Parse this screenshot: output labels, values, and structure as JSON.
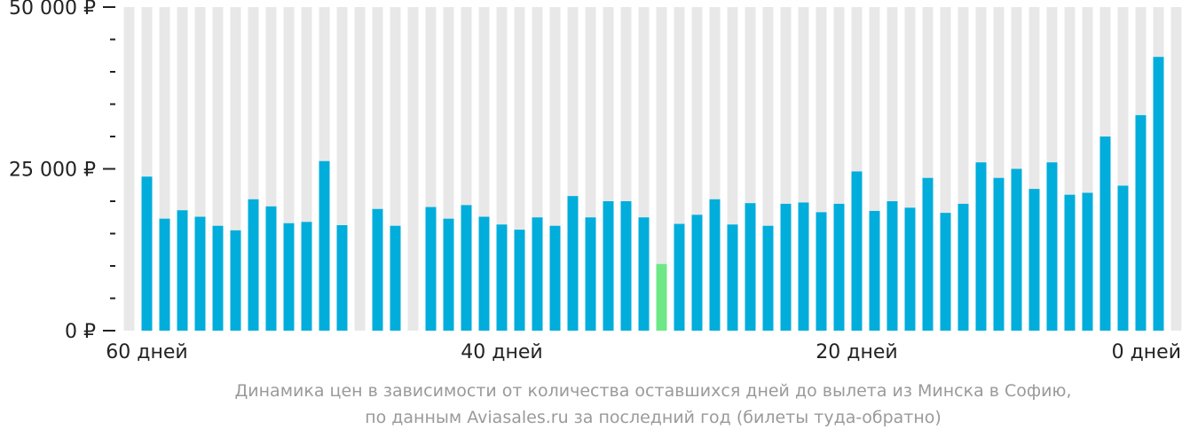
{
  "chart_data": {
    "type": "bar",
    "y_tick_labels": [
      "50 000 ₽",
      "25 000 ₽",
      "0 ₽"
    ],
    "y_tick_values": [
      50000,
      25000,
      0
    ],
    "ylim": [
      0,
      50000
    ],
    "x_tick_labels": [
      "60 дней",
      "40 дней",
      "20 дней",
      "0 дней"
    ],
    "x_tick_days": [
      60,
      40,
      20,
      0
    ],
    "days": [
      61,
      60,
      59,
      58,
      57,
      56,
      55,
      54,
      53,
      52,
      51,
      50,
      49,
      48,
      47,
      46,
      45,
      44,
      43,
      42,
      41,
      40,
      39,
      38,
      37,
      36,
      35,
      34,
      33,
      32,
      31,
      30,
      29,
      28,
      27,
      26,
      25,
      24,
      23,
      22,
      21,
      20,
      19,
      18,
      17,
      16,
      15,
      14,
      13,
      12,
      11,
      10,
      9,
      8,
      7,
      6,
      5,
      4,
      3,
      2,
      1,
      0
    ],
    "values": [
      0,
      23800,
      17300,
      18600,
      17600,
      16200,
      15500,
      20300,
      19200,
      16600,
      16800,
      26200,
      16300,
      0,
      18800,
      16200,
      0,
      19100,
      17300,
      19400,
      17600,
      16400,
      15600,
      17500,
      16200,
      20800,
      17500,
      20000,
      20000,
      17500,
      10300,
      16500,
      17900,
      20300,
      16400,
      19700,
      16200,
      19600,
      19800,
      18300,
      19600,
      24600,
      18500,
      20000,
      19000,
      23600,
      18200,
      19600,
      26000,
      23600,
      25000,
      21900,
      26000,
      21000,
      21300,
      30000,
      22400,
      33300,
      42300,
      0,
      0,
      0
    ],
    "highlight_day": 31,
    "grid": false
  },
  "colors": {
    "bar": "#00addb",
    "highlight": "#6ee887",
    "background_column": "#e8e8e8",
    "axis": "#222222",
    "caption": "#9a9a9a"
  },
  "caption": {
    "line1": "Динамика цен в зависимости от количества оставшихся дней до вылета из Минска в Софию,",
    "line2": "по данным Aviasales.ru за последний год (билеты туда-обратно)"
  }
}
